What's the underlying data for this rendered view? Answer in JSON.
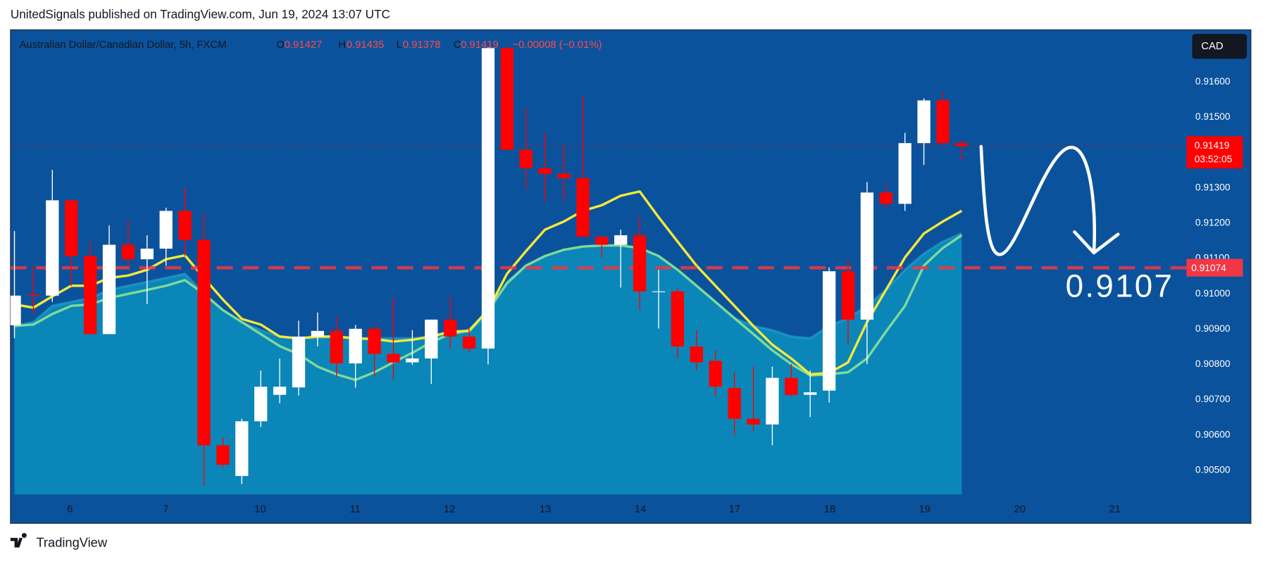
{
  "header": {
    "text": "UnitedSignals published on TradingView.com, Jun 19, 2024 13:07 UTC"
  },
  "footer": {
    "brand": "TradingView"
  },
  "chart_data": {
    "type": "candlestick",
    "symbol": "Australian Dollar/Canadian Dollar, 5h, FXCM",
    "legend_labels": [
      "O",
      "H",
      "L",
      "C"
    ],
    "change": "−0.00008 (−0.01%)",
    "currency": "CAD",
    "countdown": "03:52:05",
    "annotation": "0.9107",
    "up_color": "#ffffff",
    "down_color": "#ff0000",
    "open": [
      0.90911,
      0.90997,
      0.90995,
      0.91265,
      0.91107,
      0.90886,
      0.91139,
      0.91098,
      0.91128,
      0.91235,
      0.91153,
      0.90571,
      0.90484,
      0.90639,
      0.90714,
      0.90735,
      0.90879,
      0.90895,
      0.90803,
      0.90901,
      0.9083,
      0.90806,
      0.90817,
      0.90927,
      0.90879,
      0.90845,
      0.91696,
      0.91408,
      0.91356,
      0.9134,
      0.91328,
      0.91162,
      0.91139,
      0.91166,
      0.91007,
      0.91007,
      0.90851,
      0.9081,
      0.90733,
      0.90646,
      0.9063,
      0.90762,
      0.90714,
      0.90726,
      0.91064,
      0.90927,
      0.91287,
      0.91255,
      0.91427,
      0.91548,
      0.91427
    ],
    "high": [
      0.91178,
      0.9108,
      0.91351,
      0.91265,
      0.91148,
      0.91194,
      0.9121,
      0.91166,
      0.91244,
      0.91301,
      0.91226,
      0.90594,
      0.90646,
      0.90783,
      0.90817,
      0.90924,
      0.90947,
      0.90936,
      0.90912,
      0.90912,
      0.90989,
      0.90897,
      0.90927,
      0.90993,
      0.90901,
      0.917,
      0.917,
      0.91525,
      0.91456,
      0.91422,
      0.91559,
      0.91162,
      0.91182,
      0.91221,
      0.91068,
      0.91016,
      0.90897,
      0.9084,
      0.90778,
      0.90794,
      0.90794,
      0.90801,
      0.90783,
      0.91075,
      0.91096,
      0.91317,
      0.91308,
      0.91456,
      0.91554,
      0.9157,
      0.91435
    ],
    "low": [
      0.90874,
      0.90943,
      0.90977,
      0.91023,
      0.90886,
      0.90886,
      0.9108,
      0.90971,
      0.9108,
      0.91107,
      0.90457,
      0.90509,
      0.90461,
      0.90623,
      0.9069,
      0.90712,
      0.90851,
      0.90765,
      0.90734,
      0.90765,
      0.90758,
      0.90799,
      0.90745,
      0.90845,
      0.90833,
      0.908,
      0.91408,
      0.91296,
      0.91262,
      0.91262,
      0.91162,
      0.91103,
      0.91018,
      0.90954,
      0.90902,
      0.90817,
      0.90783,
      0.9071,
      0.906,
      0.90612,
      0.90571,
      0.9071,
      0.90651,
      0.90692,
      0.90856,
      0.90801,
      0.91244,
      0.91235,
      0.91365,
      0.91422,
      0.91378
    ],
    "close": [
      0.90995,
      0.90994,
      0.91265,
      0.91107,
      0.90886,
      0.91139,
      0.91098,
      0.91128,
      0.91235,
      0.91153,
      0.90571,
      0.90516,
      0.90639,
      0.90737,
      0.90737,
      0.90879,
      0.90895,
      0.90803,
      0.90901,
      0.9083,
      0.90806,
      0.90817,
      0.90927,
      0.90879,
      0.90845,
      0.91696,
      0.91408,
      0.91356,
      0.9134,
      0.91328,
      0.91162,
      0.91139,
      0.91166,
      0.91007,
      0.91007,
      0.90851,
      0.90806,
      0.90737,
      0.90646,
      0.9063,
      0.90762,
      0.90714,
      0.90721,
      0.91064,
      0.90927,
      0.91287,
      0.91255,
      0.91427,
      0.91548,
      0.91427,
      0.91419
    ],
    "series": [
      {
        "type": "area",
        "color": "#0a86b8",
        "values": [
          0.90909,
          0.9092,
          0.90966,
          0.90977,
          0.90988,
          0.91011,
          0.91023,
          0.91034,
          0.91045,
          0.91057,
          0.91,
          0.90954,
          0.9092,
          0.90897,
          0.90879,
          0.90874,
          0.90874,
          0.90879,
          0.90874,
          0.90874,
          0.90874,
          0.90874,
          0.90879,
          0.90886,
          0.90893,
          0.90943,
          0.91034,
          0.9108,
          0.91107,
          0.91125,
          0.91134,
          0.91137,
          0.91137,
          0.9113,
          0.91107,
          0.91068,
          0.91023,
          0.90977,
          0.90931,
          0.90909,
          0.90897,
          0.90879,
          0.90874,
          0.90909,
          0.90931,
          0.90966,
          0.91011,
          0.91068,
          0.91114,
          0.91148,
          0.91171
        ]
      },
      {
        "type": "line",
        "color": "#7fd99a",
        "values": [
          0.90909,
          0.90913,
          0.90943,
          0.90966,
          0.9097,
          0.90988,
          0.91,
          0.91011,
          0.91023,
          0.91039,
          0.91,
          0.90954,
          0.9092,
          0.90886,
          0.90852,
          0.90829,
          0.90794,
          0.90772,
          0.90756,
          0.90778,
          0.90806,
          0.90833,
          0.90863,
          0.90886,
          0.90897,
          0.90954,
          0.9103,
          0.9108,
          0.91107,
          0.91125,
          0.91134,
          0.91137,
          0.91137,
          0.9113,
          0.91107,
          0.91068,
          0.91023,
          0.90977,
          0.90931,
          0.90886,
          0.9084,
          0.90801,
          0.90769,
          0.90772,
          0.90778,
          0.90817,
          0.90893,
          0.90966,
          0.9108,
          0.9113,
          0.91166
        ]
      },
      {
        "type": "line",
        "color": "#f5e83a",
        "values": [
          0.9097,
          0.90961,
          0.90993,
          0.91023,
          0.91023,
          0.91045,
          0.91052,
          0.91068,
          0.91098,
          0.91109,
          0.91045,
          0.90984,
          0.90929,
          0.90913,
          0.90879,
          0.90874,
          0.90879,
          0.90879,
          0.90874,
          0.90872,
          0.90865,
          0.9087,
          0.90879,
          0.90893,
          0.90895,
          0.90954,
          0.91057,
          0.91121,
          0.91182,
          0.91205,
          0.91235,
          0.91251,
          0.91278,
          0.9129,
          0.91217,
          0.91148,
          0.9108,
          0.91023,
          0.90966,
          0.90909,
          0.90856,
          0.90817,
          0.90772,
          0.90776,
          0.90806,
          0.9092,
          0.91011,
          0.91103,
          0.91171,
          0.91205,
          0.91235
        ]
      }
    ],
    "hline": {
      "value": 0.91074,
      "color": "#f23645"
    },
    "xlim": [
      -0.21,
      61.86
    ],
    "ylim": [
      0.90432,
      0.91748
    ],
    "xticks": [
      {
        "value": 2.93,
        "label": "6"
      },
      {
        "value": 7.99,
        "label": "7"
      },
      {
        "value": 12.97,
        "label": "10"
      },
      {
        "value": 17.98,
        "label": "11"
      },
      {
        "value": 22.96,
        "label": "12"
      },
      {
        "value": 28.02,
        "label": "13"
      },
      {
        "value": 33.04,
        "label": "14"
      },
      {
        "value": 38.01,
        "label": "17"
      },
      {
        "value": 43.03,
        "label": "18"
      },
      {
        "value": 48.04,
        "label": "19"
      },
      {
        "value": 53.06,
        "label": "20"
      },
      {
        "value": 58.08,
        "label": "21"
      }
    ],
    "yticks": [
      {
        "value": 0.916,
        "label": "0.91600"
      },
      {
        "value": 0.915,
        "label": "0.91500"
      },
      {
        "value": 0.913,
        "label": "0.91300"
      },
      {
        "value": 0.912,
        "label": "0.91200"
      },
      {
        "value": 0.911,
        "label": "0.91100"
      },
      {
        "value": 0.91,
        "label": "0.91000"
      },
      {
        "value": 0.909,
        "label": "0.90900"
      },
      {
        "value": 0.908,
        "label": "0.90800"
      },
      {
        "value": 0.907,
        "label": "0.90700"
      },
      {
        "value": 0.906,
        "label": "0.90600"
      },
      {
        "value": 0.905,
        "label": "0.90500"
      }
    ]
  }
}
